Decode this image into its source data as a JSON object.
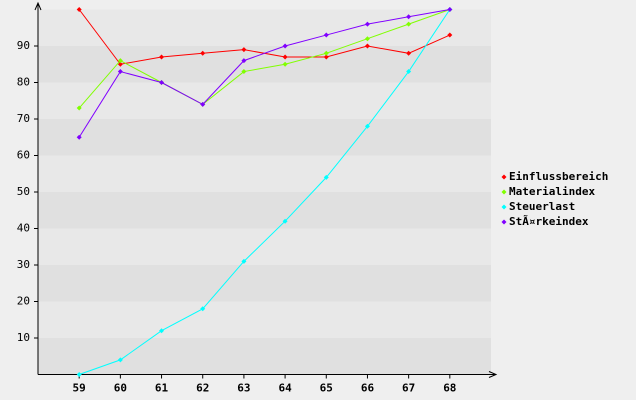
{
  "chart_data": {
    "type": "line",
    "categories": [
      "59",
      "60",
      "61",
      "62",
      "63",
      "64",
      "65",
      "66",
      "67",
      "68"
    ],
    "series": [
      {
        "name": "Einflussbereich",
        "color": "#ff0000",
        "values": [
          100,
          85,
          87,
          88,
          89,
          87,
          87,
          90,
          88,
          93
        ]
      },
      {
        "name": "Materialindex",
        "color": "#80ff00",
        "values": [
          73,
          86,
          80,
          74,
          83,
          85,
          88,
          92,
          96,
          100
        ]
      },
      {
        "name": "Steuerlast",
        "color": "#00ffff",
        "values": [
          0,
          4,
          12,
          18,
          31,
          42,
          54,
          68,
          83,
          100
        ]
      },
      {
        "name": "StÃ¤rkeindex",
        "color": "#8000ff",
        "values": [
          65,
          83,
          80,
          74,
          86,
          90,
          93,
          96,
          98,
          100
        ]
      }
    ],
    "ylim": [
      0,
      100
    ],
    "yticks": [
      10,
      20,
      30,
      40,
      50,
      60,
      70,
      80,
      90
    ],
    "grid": true,
    "legend": "right"
  }
}
